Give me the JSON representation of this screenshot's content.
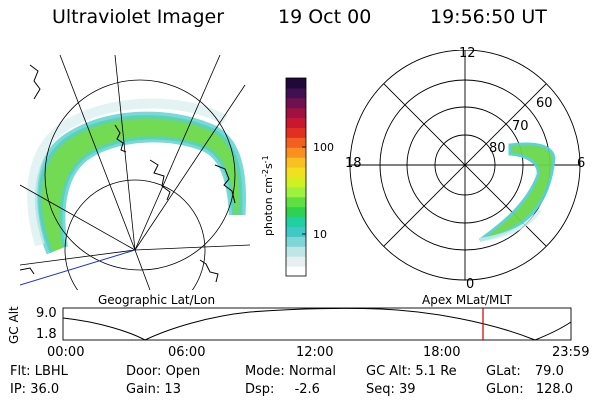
{
  "header": {
    "instrument": "Ultraviolet Imager",
    "date": "19 Oct 00",
    "time": "19:56:50 UT"
  },
  "colorbar": {
    "label": "photon cm",
    "label_sup1": "-2",
    "label_mid": "s",
    "label_sup2": "-1",
    "ticks": [
      {
        "label": "100",
        "value": 100
      },
      {
        "label": "10",
        "value": 10
      }
    ],
    "colors": [
      "#ffffff",
      "#e6f0f0",
      "#bfe6e6",
      "#7fd6d6",
      "#40c8c8",
      "#20d0a0",
      "#30d050",
      "#60e040",
      "#a0f040",
      "#d0f020",
      "#f0e020",
      "#f8c020",
      "#f89020",
      "#f06020",
      "#e03020",
      "#c81830",
      "#a01040",
      "#701050",
      "#401050",
      "#200838"
    ]
  },
  "geo_panel": {
    "caption": "Geographic Lat/Lon"
  },
  "polar_panel": {
    "caption": "Apex MLat/MLT",
    "mlt_labels": {
      "top": "12",
      "left": "18",
      "right": "6",
      "bottom": "0"
    },
    "lat_labels": [
      {
        "label": "60",
        "value": 60
      },
      {
        "label": "70",
        "value": 70
      },
      {
        "label": "80",
        "value": 80
      }
    ]
  },
  "orbit_plot": {
    "ylabel": "GC Alt",
    "y_ticks": [
      "9.0",
      "1.8"
    ],
    "x_ticks": [
      "00:00",
      "06:00",
      "12:00",
      "18:00",
      "23:59"
    ],
    "current_time_marker": "19:56:50",
    "marker_color": "#cc0000"
  },
  "footer": {
    "rows": [
      [
        {
          "key": "Flt:",
          "value": "LBHL"
        },
        {
          "key": "Door:",
          "value": "Open"
        },
        {
          "key": "Mode:",
          "value": "Normal"
        },
        {
          "key": "GC Alt:",
          "value": "5.1 Re"
        },
        {
          "key": "GLat:",
          "value": "79.0"
        }
      ],
      [
        {
          "key": "IP:",
          "value": "36.0"
        },
        {
          "key": "Gain:",
          "value": "13"
        },
        {
          "key": "Dsp:",
          "value": "-2.6"
        },
        {
          "key": "Seq:",
          "value": "39"
        },
        {
          "key": "GLon:",
          "value": "128.0"
        }
      ]
    ]
  }
}
